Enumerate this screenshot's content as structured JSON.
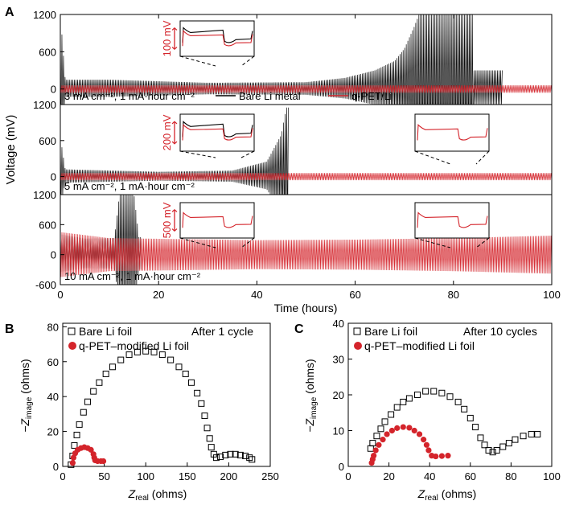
{
  "figure": {
    "panel_labels": [
      "A",
      "B",
      "C"
    ],
    "colors": {
      "bare": "#000000",
      "qpet": "#d4242b",
      "frame": "#000000"
    }
  },
  "chart_data": [
    {
      "id": "A",
      "type": "line",
      "xlabel": "Time (hours)",
      "ylabel": "Voltage (mV)",
      "xlim": [
        0,
        100
      ],
      "xticks": [
        0,
        20,
        40,
        60,
        80,
        100
      ],
      "legend": {
        "placement": "inside-top-subplot",
        "entries": [
          "Bare Li metal",
          "q-PET/Li"
        ]
      },
      "subplots": [
        {
          "condition": "3 mA cm⁻², 1 mA·hour cm⁻²",
          "ylim": [
            -250,
            1200
          ],
          "yticks": [
            0,
            600,
            1200
          ],
          "series": [
            {
              "name": "Bare Li metal",
              "envelope": [
                [
                  0.3,
                  900
                ],
                [
                  1,
                  150
                ],
                [
                  10,
                  150
                ],
                [
                  30,
                  100
                ],
                [
                  50,
                  110
                ],
                [
                  58,
                  180
                ],
                [
                  64,
                  300
                ],
                [
                  68,
                  450
                ],
                [
                  70,
                  650
                ],
                [
                  72,
                  1000
                ],
                [
                  73,
                  1200
                ],
                [
                  84,
                  1200
                ],
                [
                  84,
                  300
                ],
                [
                  90,
                  300
                ]
              ],
              "end_hours": 90
            },
            {
              "name": "q-PET/Li",
              "amplitude": 60,
              "end_hours": 100
            }
          ],
          "inset": {
            "scale_label": "100 mV",
            "at_hours": 33
          }
        },
        {
          "condition": "5 mA cm⁻², 1 mA·hour cm⁻²",
          "ylim": [
            -300,
            1200
          ],
          "yticks": [
            0,
            600,
            1200
          ],
          "series": [
            {
              "name": "Bare Li metal",
              "envelope": [
                [
                  0.3,
                  500
                ],
                [
                  1,
                  120
                ],
                [
                  20,
                  80
                ],
                [
                  35,
                  100
                ],
                [
                  42,
                  250
                ],
                [
                  45,
                  700
                ],
                [
                  46,
                  1150
                ]
              ],
              "end_hours": 46.5
            },
            {
              "name": "q-PET/Li",
              "amplitude": 60,
              "end_hours": 100
            }
          ],
          "insets": [
            {
              "scale_label": "200 mV",
              "at_hours": 33
            },
            {
              "scale_label": "",
              "at_hours": 80
            }
          ]
        },
        {
          "condition": "10 mA cm⁻², 1 mA·hour cm⁻²",
          "ylim": [
            -600,
            1200
          ],
          "yticks": [
            -600,
            0,
            600,
            1200
          ],
          "series": [
            {
              "name": "Bare Li metal",
              "envelope": [
                [
                  0.3,
                  400
                ],
                [
                  5,
                  320
                ],
                [
                  11,
                  330
                ],
                [
                  12,
                  1200
                ],
                [
                  15,
                  1200
                ],
                [
                  16,
                  350
                ]
              ],
              "end_hours": 16.5
            },
            {
              "name": "q-PET/Li",
              "envelope": [
                [
                  0,
                  450
                ],
                [
                  10,
                  330
                ],
                [
                  40,
                  290
                ],
                [
                  60,
                  300
                ],
                [
                  80,
                  330
                ],
                [
                  100,
                  380
                ]
              ],
              "end_hours": 100
            }
          ],
          "insets": [
            {
              "scale_label": "500 mV",
              "at_hours": 33
            },
            {
              "scale_label": "",
              "at_hours": 80
            }
          ]
        }
      ]
    },
    {
      "id": "B",
      "type": "scatter",
      "annotation": "After 1 cycle",
      "xlabel": "Z_real (ohms)",
      "ylabel": "−Z_image (ohms)",
      "xlim": [
        0,
        250
      ],
      "ylim": [
        0,
        82
      ],
      "xticks": [
        0,
        50,
        100,
        150,
        200,
        250
      ],
      "yticks": [
        0,
        20,
        40,
        60,
        80
      ],
      "series": [
        {
          "name": "Bare Li foil",
          "marker": "open-square",
          "points": [
            [
              10,
              1
            ],
            [
              12,
              6
            ],
            [
              14,
              12
            ],
            [
              17,
              18
            ],
            [
              20,
              24
            ],
            [
              25,
              31
            ],
            [
              30,
              37
            ],
            [
              37,
              43
            ],
            [
              44,
              48
            ],
            [
              52,
              53
            ],
            [
              60,
              57
            ],
            [
              70,
              61
            ],
            [
              80,
              64
            ],
            [
              90,
              65.5
            ],
            [
              100,
              66
            ],
            [
              110,
              65.5
            ],
            [
              120,
              64
            ],
            [
              130,
              61
            ],
            [
              140,
              57
            ],
            [
              148,
              53
            ],
            [
              155,
              48
            ],
            [
              162,
              42
            ],
            [
              167,
              36
            ],
            [
              171,
              29
            ],
            [
              174,
              22
            ],
            [
              177,
              16
            ],
            [
              179,
              11
            ],
            [
              182,
              7
            ],
            [
              185,
              5
            ],
            [
              190,
              5.5
            ],
            [
              196,
              6.5
            ],
            [
              202,
              7
            ],
            [
              208,
              7
            ],
            [
              214,
              6.5
            ],
            [
              220,
              6
            ],
            [
              225,
              5
            ],
            [
              228,
              4
            ]
          ]
        },
        {
          "name": "q-PET-modified Li foil",
          "marker": "filled-circle",
          "points": [
            [
              12,
              2
            ],
            [
              13,
              5
            ],
            [
              15,
              7.5
            ],
            [
              18,
              9.5
            ],
            [
              22,
              10.5
            ],
            [
              26,
              11
            ],
            [
              30,
              10.5
            ],
            [
              34,
              9.5
            ],
            [
              37,
              7
            ],
            [
              38,
              5
            ],
            [
              39,
              3.5
            ],
            [
              42,
              3
            ],
            [
              46,
              3
            ],
            [
              49,
              3
            ]
          ]
        }
      ]
    },
    {
      "id": "C",
      "type": "scatter",
      "annotation": "After 10 cycles",
      "xlabel": "Z_real (ohms)",
      "ylabel": "−Z_image (ohms)",
      "xlim": [
        0,
        100
      ],
      "ylim": [
        0,
        40
      ],
      "xticks": [
        0,
        20,
        40,
        60,
        80,
        100
      ],
      "yticks": [
        0,
        10,
        20,
        30,
        40
      ],
      "series": [
        {
          "name": "Bare Li foil",
          "marker": "open-square",
          "points": [
            [
              11,
              5
            ],
            [
              12,
              6.5
            ],
            [
              14,
              8.5
            ],
            [
              16,
              10.5
            ],
            [
              18,
              12.5
            ],
            [
              21,
              14.5
            ],
            [
              24,
              16.5
            ],
            [
              27,
              18
            ],
            [
              30,
              19
            ],
            [
              34,
              20
            ],
            [
              38,
              21
            ],
            [
              42,
              21
            ],
            [
              46,
              20.5
            ],
            [
              50,
              19.5
            ],
            [
              54,
              18
            ],
            [
              57,
              16
            ],
            [
              60,
              13.5
            ],
            [
              62.5,
              11
            ],
            [
              65,
              8
            ],
            [
              67,
              6
            ],
            [
              69,
              4.5
            ],
            [
              71,
              4
            ],
            [
              73,
              4.5
            ],
            [
              76,
              5.5
            ],
            [
              79,
              6.5
            ],
            [
              82,
              7.5
            ],
            [
              86,
              8.5
            ],
            [
              90,
              9
            ],
            [
              93,
              9
            ]
          ]
        },
        {
          "name": "q-PET-modified Li foil",
          "marker": "filled-circle",
          "points": [
            [
              11.5,
              1
            ],
            [
              12,
              2
            ],
            [
              12.5,
              3
            ],
            [
              13.5,
              4.5
            ],
            [
              15,
              6
            ],
            [
              17,
              7.5
            ],
            [
              19,
              9
            ],
            [
              21.5,
              10
            ],
            [
              24,
              10.7
            ],
            [
              27,
              11
            ],
            [
              30,
              10.8
            ],
            [
              32.5,
              10
            ],
            [
              35,
              9
            ],
            [
              37,
              7.5
            ],
            [
              38.5,
              6
            ],
            [
              39.5,
              4.5
            ],
            [
              41,
              3
            ],
            [
              43,
              2.8
            ],
            [
              46,
              2.9
            ],
            [
              49,
              3
            ]
          ]
        }
      ]
    }
  ],
  "labels": {
    "panel_a_ylabel": "Voltage (mV)",
    "panel_a_xlabel": "Time (hours)",
    "legend_bare": "Bare Li metal",
    "legend_qpet": "q-PET/Li",
    "cond1": "3 mA cm⁻², 1 mA·hour cm⁻²",
    "cond2": "5 mA cm⁻², 1 mA·hour cm⁻²",
    "cond3": "10 mA cm⁻², 1 mA·hour cm⁻²",
    "inset1": "100 mV",
    "inset2": "200 mV",
    "inset3": "500 mV",
    "b_title": "After 1 cycle",
    "c_title": "After 10 cycles",
    "b_legend_bare": "Bare Li foil",
    "b_legend_qpet": "q-PET–modified Li foil",
    "c_legend_bare": "Bare Li foil",
    "c_legend_qpet": "q-PET–modified Li foil",
    "z_real": "Z",
    "z_real_sub": "real",
    "z_real_unit": " (ohms)",
    "z_image_minus": "−Z",
    "z_image_sub": "image",
    "z_image_unit": " (ohms)"
  }
}
